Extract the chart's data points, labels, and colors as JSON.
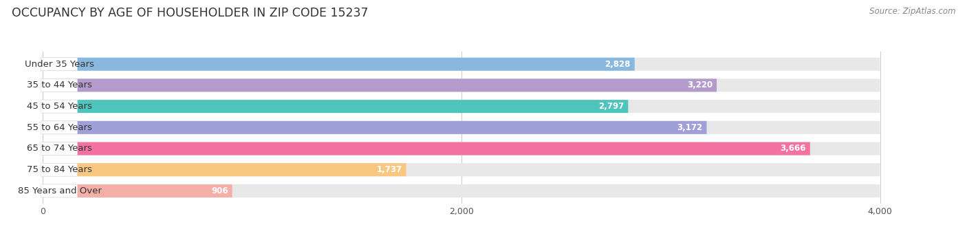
{
  "title": "OCCUPANCY BY AGE OF HOUSEHOLDER IN ZIP CODE 15237",
  "source": "Source: ZipAtlas.com",
  "categories": [
    "Under 35 Years",
    "35 to 44 Years",
    "45 to 54 Years",
    "55 to 64 Years",
    "65 to 74 Years",
    "75 to 84 Years",
    "85 Years and Over"
  ],
  "values": [
    2828,
    3220,
    2797,
    3172,
    3666,
    1737,
    906
  ],
  "bar_colors": [
    "#89b8de",
    "#b39ccc",
    "#4ec4bc",
    "#a0a0d8",
    "#f472a0",
    "#f8c882",
    "#f4b0a8"
  ],
  "background_color": "#ffffff",
  "bar_track_color": "#e8e8e8",
  "label_bg_color": "#ffffff",
  "xlim_min": -180,
  "xlim_max": 4300,
  "xticks": [
    0,
    2000,
    4000
  ],
  "title_fontsize": 12.5,
  "label_fontsize": 9.5,
  "value_fontsize": 8.5,
  "source_fontsize": 8.5
}
